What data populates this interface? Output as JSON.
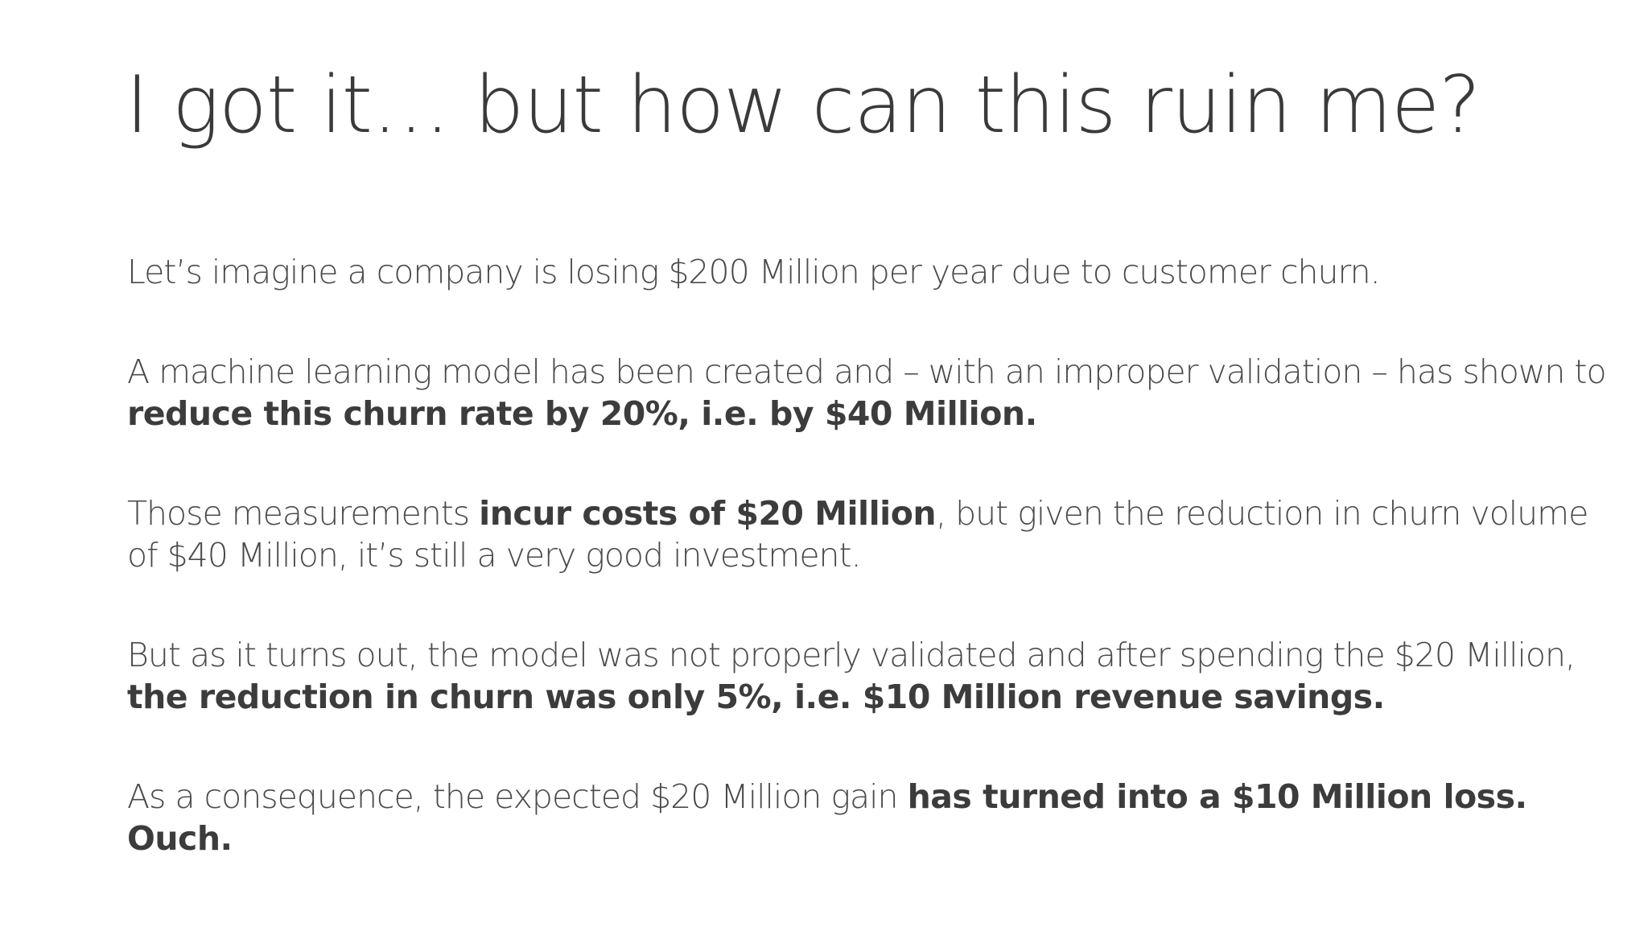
{
  "slide": {
    "title": "I got it… but how can this ruin me?",
    "paragraphs": [
      {
        "p1": "Let’s imagine a company is losing $200 Million per year due to customer churn."
      },
      {
        "p1": "A machine learning model has been created and – with an improper validation – has shown to ",
        "bold": "reduce this churn rate by 20%, i.e. by $40 Million."
      },
      {
        "p1": "Those measurements ",
        "bold": "incur costs of $20 Million",
        "p2": ", but given the reduction in churn volume of $40 Million, it’s still a very good investment."
      },
      {
        "p1": "But as it turns out, the model was not properly validated and after spending the $20 Million, ",
        "bold": "the reduction in churn was only 5%, i.e. $10 Million revenue savings."
      },
      {
        "p1": "As a consequence, the expected $20 Million gain ",
        "bold": "has turned into a $10 Million loss. Ouch."
      }
    ]
  }
}
